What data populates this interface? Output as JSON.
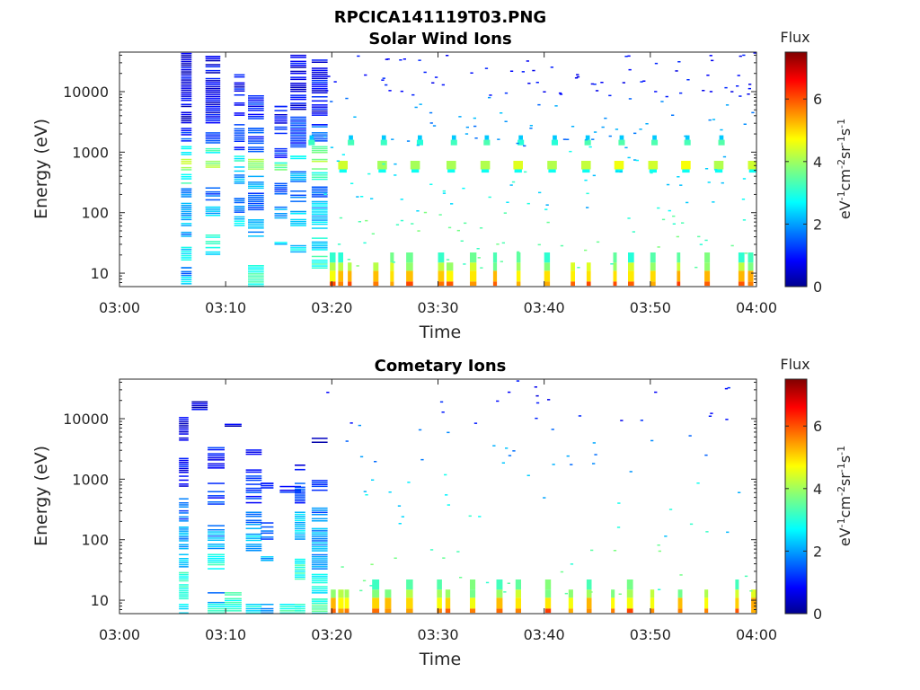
{
  "figure": {
    "file_title": "RPCICA141119T03.PNG",
    "panels": [
      {
        "title": "Solar Wind Ions",
        "xlabel": "Time",
        "ylabel": "Energy (eV)",
        "cbar_title": "Flux",
        "cbar_label": "eV-1cm-2sr-1s-1"
      },
      {
        "title": "Cometary Ions",
        "xlabel": "Time",
        "ylabel": "Energy (eV)",
        "cbar_title": "Flux",
        "cbar_label": "eV-1cm-2sr-1s-1"
      }
    ]
  },
  "chart_data": [
    {
      "type": "heatmap",
      "title": "Solar Wind Ions",
      "xlabel": "Time",
      "ylabel": "Energy (eV)",
      "x_ticks": [
        "03:00",
        "03:10",
        "03:20",
        "03:30",
        "03:40",
        "03:50",
        "04:00"
      ],
      "xlim_minutes": [
        0,
        60
      ],
      "y_scale": "log",
      "y_ticks": [
        "10",
        "100",
        "1000",
        "10000"
      ],
      "ylim": [
        6,
        45000
      ],
      "colorbar": {
        "title": "Flux",
        "label": "eV-1cm-2sr-1s-1",
        "ticks": [
          "0",
          "2",
          "4",
          "6"
        ],
        "range": [
          0,
          7.5
        ],
        "colormap": "jet"
      },
      "data": {
        "dense_columns": [
          {
            "t": 5.8,
            "w": 1.0,
            "bands": [
              [
                6,
                9,
                2.5
              ],
              [
                9,
                13,
                1.5
              ],
              [
                15,
                28,
                2.5
              ],
              [
                40,
                50,
                2.0
              ],
              [
                60,
                150,
                2.1
              ],
              [
                180,
                260,
                1.8
              ],
              [
                300,
                450,
                3.0
              ],
              [
                500,
                800,
                4.0
              ],
              [
                900,
                1300,
                3.0
              ],
              [
                1500,
                2600,
                1.3
              ],
              [
                3000,
                45000,
                0.6
              ]
            ]
          },
          {
            "t": 8.1,
            "w": 1.4,
            "bands": [
              [
                20,
                28,
                2.6
              ],
              [
                30,
                45,
                2.8
              ],
              [
                60,
                130,
                2.2
              ],
              [
                160,
                270,
                1.5
              ],
              [
                480,
                800,
                4.1
              ],
              [
                900,
                1200,
                3.0
              ],
              [
                1400,
                2200,
                1.2
              ],
              [
                3000,
                40000,
                0.7
              ]
            ]
          },
          {
            "t": 10.8,
            "w": 1.0,
            "bands": [
              [
                60,
                90,
                2.5
              ],
              [
                100,
                180,
                1.6
              ],
              [
                300,
                600,
                2.0
              ],
              [
                700,
                900,
                2.8
              ],
              [
                1000,
                3000,
                1.2
              ],
              [
                4000,
                20000,
                0.8
              ]
            ]
          },
          {
            "t": 12.1,
            "w": 1.5,
            "bands": [
              [
                6,
                14,
                3.0
              ],
              [
                40,
                80,
                2.0
              ],
              [
                110,
                220,
                1.5
              ],
              [
                250,
                420,
                2.2
              ],
              [
                480,
                800,
                4.1
              ],
              [
                1000,
                2600,
                1.3
              ],
              [
                3500,
                9000,
                1.0
              ]
            ]
          },
          {
            "t": 14.6,
            "w": 1.2,
            "bands": [
              [
                30,
                34,
                2.3
              ],
              [
                80,
                130,
                2.0
              ],
              [
                200,
                320,
                1.5
              ],
              [
                500,
                700,
                3.4
              ],
              [
                800,
                1200,
                1.3
              ],
              [
                2000,
                6000,
                0.9
              ]
            ]
          },
          {
            "t": 16.1,
            "w": 1.5,
            "bands": [
              [
                22,
                30,
                2.4
              ],
              [
                60,
                110,
                2.3
              ],
              [
                150,
                240,
                1.6
              ],
              [
                300,
                500,
                2.0
              ],
              [
                600,
                900,
                3.0
              ],
              [
                1200,
                4000,
                1.2
              ],
              [
                5000,
                42000,
                0.7
              ]
            ]
          },
          {
            "t": 18.1,
            "w": 1.5,
            "bands": [
              [
                12,
                20,
                3.2
              ],
              [
                24,
                40,
                2.6
              ],
              [
                50,
                160,
                2.3
              ],
              [
                180,
                280,
                1.8
              ],
              [
                320,
                480,
                3.0
              ],
              [
                520,
                800,
                4.1
              ],
              [
                900,
                1400,
                3.3
              ],
              [
                1500,
                3000,
                1.4
              ],
              [
                4000,
                35000,
                0.8
              ]
            ]
          }
        ],
        "sw_peaks_minutes": [
          21.0,
          24.7,
          27.8,
          31.2,
          34.4,
          37.5,
          40.7,
          43.9,
          47.0,
          50.2,
          53.3,
          56.4,
          59.6
        ],
        "low_energy_bursts_minutes": [
          19.8,
          20.6,
          21.5,
          23.9,
          25.5,
          27.0,
          30.0,
          30.8,
          33.0,
          35.2,
          37.4,
          40.0,
          42.5,
          44.0,
          46.5,
          47.9,
          50.0,
          52.5,
          55.1,
          58.3,
          59.2
        ]
      }
    },
    {
      "type": "heatmap",
      "title": "Cometary Ions",
      "xlabel": "Time",
      "ylabel": "Energy (eV)",
      "x_ticks": [
        "03:00",
        "03:10",
        "03:20",
        "03:30",
        "03:40",
        "03:50",
        "04:00"
      ],
      "xlim_minutes": [
        0,
        60
      ],
      "y_scale": "log",
      "y_ticks": [
        "10",
        "100",
        "1000",
        "10000"
      ],
      "ylim": [
        6,
        45000
      ],
      "colorbar": {
        "title": "Flux",
        "label": "eV-1cm-2sr-1s-1",
        "ticks": [
          "0",
          "2",
          "4",
          "6"
        ],
        "range": [
          0,
          7.5
        ],
        "colormap": "jet"
      },
      "data": {
        "dense_columns": [
          {
            "t": 5.6,
            "w": 0.9,
            "bands": [
              [
                6,
                9,
                2.5
              ],
              [
                9,
                14,
                3.2
              ],
              [
                14,
                30,
                3.0
              ],
              [
                35,
                60,
                2.2
              ],
              [
                70,
                170,
                2.0
              ],
              [
                200,
                500,
                1.5
              ],
              [
                700,
                2500,
                0.8
              ],
              [
                4000,
                11000,
                0.5
              ]
            ]
          },
          {
            "t": 6.8,
            "w": 1.5,
            "bands": [
              [
                14000,
                20000,
                0.6
              ]
            ]
          },
          {
            "t": 8.3,
            "w": 1.6,
            "bands": [
              [
                6,
                9,
                3.0
              ],
              [
                9,
                14,
                2.0
              ],
              [
                30,
                60,
                3.0
              ],
              [
                70,
                180,
                2.0
              ],
              [
                350,
                900,
                1.2
              ],
              [
                1500,
                3500,
                0.9
              ]
            ]
          },
          {
            "t": 9.9,
            "w": 1.6,
            "bands": [
              [
                6,
                9,
                3.0
              ],
              [
                9,
                14,
                3.0
              ],
              [
                7500,
                8500,
                0.5
              ]
            ]
          },
          {
            "t": 11.9,
            "w": 1.5,
            "bands": [
              [
                6,
                9,
                2.6
              ],
              [
                60,
                130,
                2.2
              ],
              [
                150,
                300,
                1.8
              ],
              [
                400,
                1500,
                1.1
              ],
              [
                2000,
                3200,
                0.8
              ]
            ]
          },
          {
            "t": 13.3,
            "w": 1.2,
            "bands": [
              [
                6,
                9,
                2.0
              ],
              [
                45,
                55,
                2.2
              ],
              [
                100,
                200,
                1.5
              ],
              [
                700,
                900,
                1.0
              ]
            ]
          },
          {
            "t": 15.1,
            "w": 2.0,
            "bands": [
              [
                6,
                9,
                3.0
              ],
              [
                600,
                800,
                1.1
              ]
            ]
          },
          {
            "t": 16.5,
            "w": 1.0,
            "bands": [
              [
                6,
                9,
                3.0
              ],
              [
                22,
                50,
                3.0
              ],
              [
                100,
                300,
                2.3
              ],
              [
                400,
                900,
                1.2
              ],
              [
                1400,
                1800,
                0.9
              ]
            ]
          },
          {
            "t": 18.1,
            "w": 1.5,
            "bands": [
              [
                6,
                11,
                3.2
              ],
              [
                12,
                28,
                2.7
              ],
              [
                30,
                160,
                2.0
              ],
              [
                200,
                350,
                1.7
              ],
              [
                600,
                1000,
                1.0
              ],
              [
                4000,
                5000,
                0.5
              ]
            ]
          }
        ],
        "low_energy_bursts_minutes": [
          19.9,
          20.6,
          21.2,
          23.8,
          25.0,
          27.0,
          29.9,
          30.7,
          33.0,
          35.5,
          37.3,
          40.1,
          42.3,
          44.0,
          46.3,
          47.8,
          50.0,
          52.6,
          55.1,
          58.0,
          59.5
        ]
      }
    }
  ]
}
